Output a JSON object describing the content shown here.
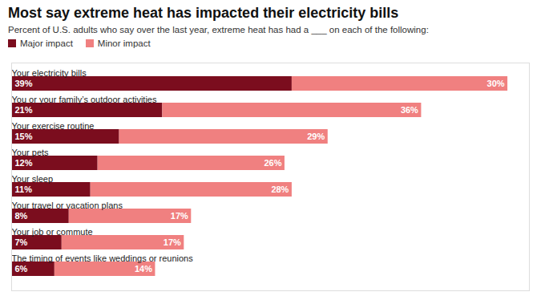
{
  "chart_data": {
    "type": "bar",
    "orientation": "horizontal",
    "stacked": true,
    "title": "Most say extreme heat has impacted their electricity bills",
    "subtitle": "Percent of U.S. adults who say over the last year, extreme heat has had a ___ on each of the following:",
    "categories": [
      "Your electricity bills",
      "You or your family’s outdoor activities",
      "Your exercise routine",
      "Your pets",
      "Your sleep",
      "Your travel or vacation plans",
      "Your job or commute",
      "The timing of events like weddings or reunions"
    ],
    "series": [
      {
        "name": "Major impact",
        "color": "#7b0d1e",
        "values": [
          39,
          21,
          15,
          12,
          11,
          8,
          7,
          6
        ],
        "value_labels": [
          "39%",
          "21%",
          "15%",
          "12%",
          "11%",
          "8%",
          "7%",
          "6%"
        ]
      },
      {
        "name": "Minor impact",
        "color": "#f08080",
        "values": [
          30,
          36,
          29,
          26,
          28,
          17,
          17,
          14
        ],
        "value_labels": [
          "30%",
          "36%",
          "29%",
          "26%",
          "28%",
          "17%",
          "17%",
          "14%"
        ]
      }
    ],
    "xlim": [
      0,
      72
    ],
    "data_labels": true,
    "tick_labels": false,
    "grid": false
  }
}
